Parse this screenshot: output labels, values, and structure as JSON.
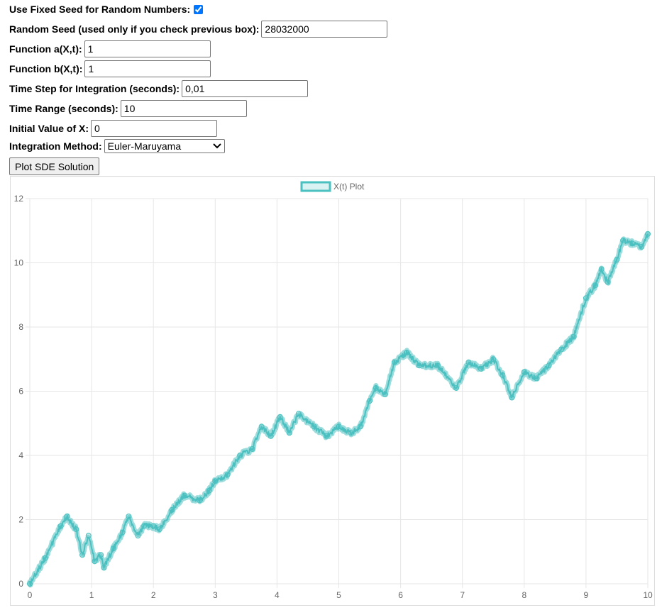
{
  "form": {
    "fixed_seed_label": "Use Fixed Seed for Random Numbers:",
    "fixed_seed_checked": true,
    "seed_label": "Random Seed (used only if you check previous box):",
    "seed_value": "28032000",
    "func_a_label": "Function a(X,t):",
    "func_a_value": "1",
    "func_b_label": "Function b(X,t):",
    "func_b_value": "1",
    "time_step_label": "Time Step for Integration (seconds):",
    "time_step_value": "0,01",
    "time_range_label": "Time Range (seconds):",
    "time_range_value": "10",
    "initial_label": "Initial Value of X:",
    "initial_value": "0",
    "method_label": "Integration Method:",
    "method_value": "Euler-Maruyama",
    "plot_button": "Plot SDE Solution"
  },
  "chart_data": {
    "type": "line",
    "legend": [
      "X(t) Plot"
    ],
    "legend_position": "top-center",
    "series_color": "#4bc0c0",
    "grid": true,
    "xlim": [
      0,
      10
    ],
    "ylim": [
      0,
      12
    ],
    "x_ticks": [
      "0",
      "1",
      "2",
      "3",
      "4",
      "5",
      "6",
      "7",
      "8",
      "9",
      "10"
    ],
    "y_ticks": [
      "0",
      "2",
      "4",
      "6",
      "8",
      "10",
      "12"
    ],
    "x": [
      0,
      0.25,
      0.5,
      0.6,
      0.75,
      0.85,
      0.95,
      1.05,
      1.15,
      1.2,
      1.35,
      1.5,
      1.6,
      1.75,
      1.85,
      2.0,
      2.1,
      2.3,
      2.5,
      2.75,
      2.9,
      3.0,
      3.2,
      3.4,
      3.6,
      3.75,
      3.9,
      4.05,
      4.2,
      4.35,
      4.6,
      4.8,
      5.0,
      5.2,
      5.35,
      5.5,
      5.6,
      5.75,
      5.9,
      6.1,
      6.3,
      6.6,
      6.9,
      7.1,
      7.3,
      7.5,
      7.65,
      7.8,
      8.0,
      8.2,
      8.4,
      8.6,
      8.8,
      9.0,
      9.15,
      9.25,
      9.35,
      9.5,
      9.6,
      9.75,
      9.9,
      10.0
    ],
    "y": [
      0.0,
      0.8,
      1.8,
      2.1,
      1.7,
      0.9,
      1.5,
      0.7,
      0.9,
      0.5,
      1.1,
      1.6,
      2.1,
      1.5,
      1.8,
      1.8,
      1.7,
      2.3,
      2.75,
      2.6,
      2.9,
      3.2,
      3.4,
      4.0,
      4.2,
      4.9,
      4.6,
      5.2,
      4.7,
      5.3,
      4.9,
      4.6,
      4.9,
      4.7,
      4.9,
      5.7,
      6.1,
      5.9,
      6.9,
      7.2,
      6.8,
      6.8,
      6.1,
      6.9,
      6.7,
      7.0,
      6.5,
      5.8,
      6.6,
      6.4,
      6.8,
      7.3,
      7.7,
      8.9,
      9.3,
      9.8,
      9.4,
      10.1,
      10.7,
      10.6,
      10.5,
      10.9
    ]
  }
}
